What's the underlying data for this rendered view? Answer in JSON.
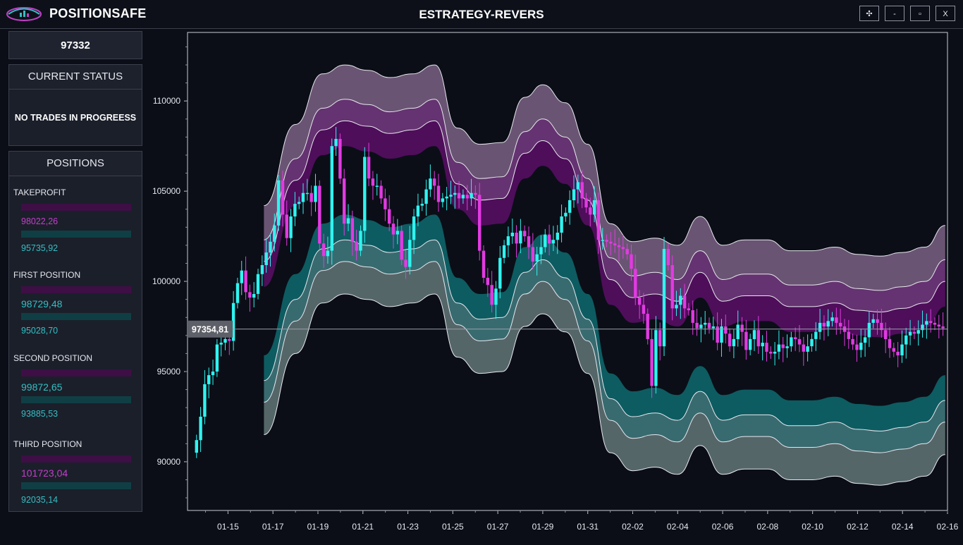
{
  "header": {
    "app_name": "POSITIONSAFE",
    "window_title": "ESTRATEGY-REVERS",
    "controls": {
      "move": "✣",
      "minimize": "-",
      "maximize": "▫",
      "close": "X"
    },
    "accent_colors": {
      "magenta": "#c23fc9",
      "teal": "#34bfc3"
    }
  },
  "sidebar": {
    "price": "97332",
    "status_title": "CURRENT STATUS",
    "status_text": "NO TRADES IN PROGREESS",
    "positions_title": "POSITIONS",
    "positions": [
      {
        "label": "TAKEPROFIT",
        "upper": "98022,26",
        "lower": "95735,92"
      },
      {
        "label": "FIRST POSITION",
        "upper": "98729,48",
        "lower": "95028,70"
      },
      {
        "label": "SECOND POSITION",
        "upper": "99872,65",
        "lower": "93885,53"
      },
      {
        "label": "THIRD POSITION",
        "upper": "101723,04",
        "lower": "92035,14"
      }
    ]
  },
  "chart_data": {
    "type": "candlestick",
    "current_price_label": "97354,81",
    "current_price": 97354.81,
    "y_ticks": [
      "90000",
      "95000",
      "100000",
      "105000",
      "110000"
    ],
    "y_tick_values": [
      90000,
      95000,
      100000,
      105000,
      110000
    ],
    "ylim": [
      87300,
      113800
    ],
    "x_ticks": [
      "01-15",
      "01-17",
      "01-19",
      "01-21",
      "01-23",
      "01-25",
      "01-27",
      "01-29",
      "01-31",
      "02-02",
      "02-04",
      "02-06",
      "02-08",
      "02-10",
      "02-12",
      "02-14",
      "02-16"
    ],
    "x_range_days": [
      -1.8,
      32.0
    ],
    "band_colors": {
      "outer_upper": "#6f5a78",
      "mid_upper": "#6a3676",
      "inner_upper": "#520f5e",
      "inner_lower": "#0e6165",
      "mid_lower": "#3b7175",
      "outer_lower": "#5a6c6e"
    },
    "bands": {
      "x": [
        1.6,
        3.0,
        4.2,
        5.2,
        6.2,
        7.2,
        8.2,
        9.2,
        10.2,
        11.2,
        12.2,
        13.2,
        14.0,
        15.0,
        16.0,
        17.0,
        18.0,
        19.0,
        20.0,
        21.0,
        22.0,
        23.0,
        24.0,
        25.0,
        26.0,
        27.0,
        28.0,
        29.0,
        30.0,
        31.0,
        31.9
      ],
      "mid": [
        97500,
        102000,
        104800,
        105300,
        105000,
        104600,
        104800,
        105300,
        101800,
        100900,
        101000,
        103500,
        104200,
        103200,
        100900,
        96500,
        95500,
        95700,
        95300,
        96900,
        95300,
        95600,
        95600,
        95000,
        95000,
        95200,
        94800,
        94700,
        94900,
        95200,
        96400
      ],
      "offsets": {
        "outer_upper": 6700,
        "mid_upper": 4800,
        "inner_upper": 3600,
        "inner_lower": -3000,
        "mid_lower": -4200,
        "outer_lower": -6000
      }
    },
    "candles_close": [
      91200,
      92500,
      94300,
      94800,
      95000,
      96500,
      96600,
      96800,
      96700,
      98800,
      99900,
      100600,
      99400,
      99100,
      99300,
      100400,
      100900,
      101600,
      102200,
      103100,
      105600,
      103700,
      102400,
      103600,
      104300,
      104400,
      104900,
      104900,
      104400,
      105300,
      102100,
      101400,
      101700,
      107500,
      107900,
      105700,
      103200,
      103500,
      102200,
      101700,
      102800,
      106900,
      105700,
      105300,
      105300,
      104600,
      104000,
      103200,
      102600,
      102800,
      101200,
      100800,
      102300,
      103600,
      104200,
      104300,
      105100,
      105700,
      105300,
      104400,
      104600,
      104700,
      104800,
      104900,
      104600,
      104800,
      104600,
      104900,
      104800,
      101700,
      100200,
      99800,
      98700,
      99600,
      101300,
      102000,
      102500,
      102700,
      102100,
      102800,
      102500,
      101900,
      101100,
      101500,
      101900,
      102600,
      102100,
      102300,
      102700,
      103600,
      103800,
      104500,
      105100,
      105500,
      104600,
      104100,
      103700,
      104500,
      102300,
      102300,
      102200,
      102100,
      102000,
      101900,
      101800,
      101500,
      100700,
      99100,
      98700,
      98200,
      96800,
      94200,
      97300,
      96400,
      101800,
      100900,
      98500,
      98700,
      99200,
      98500,
      98400,
      97700,
      97400,
      97600,
      97700,
      97400,
      97500,
      96600,
      97500,
      97100,
      96400,
      96800,
      97600,
      97200,
      96200,
      96800,
      97300,
      96400,
      96600,
      96100,
      96000,
      96100,
      96500,
      96300,
      96400,
      96900,
      96800,
      96500,
      96100,
      96400,
      96800,
      97200,
      97700,
      97500,
      97800,
      98000,
      97700,
      97500,
      97200,
      96800,
      96500,
      96200,
      96600,
      96900,
      97700,
      97900,
      97700,
      97300,
      96800,
      96300,
      96100,
      95900,
      96500,
      97000,
      97200,
      97100,
      97300,
      97600,
      97800,
      97700,
      97600,
      97500,
      97400
    ]
  }
}
